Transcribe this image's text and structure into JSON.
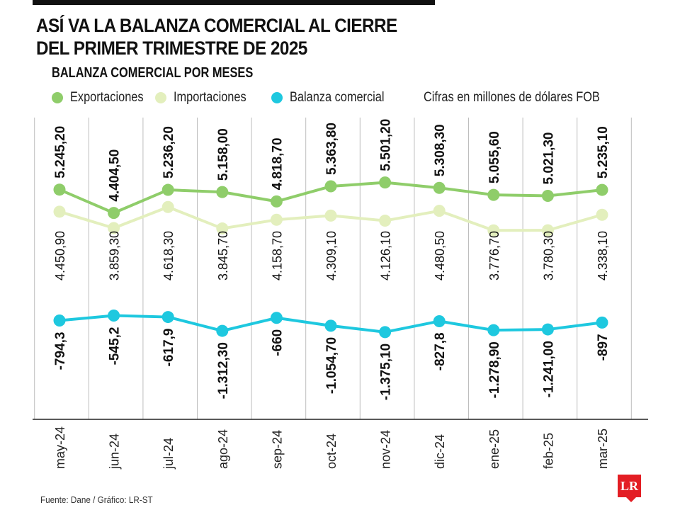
{
  "header": {
    "title_line1": "ASÍ VA LA BALANZA COMERCIAL AL CIERRE",
    "title_line2": "DEL PRIMER TRIMESTRE DE 2025",
    "subtitle": "BALANZA COMERCIAL POR MESES"
  },
  "legend": {
    "exports_label": "Exportaciones",
    "imports_label": "Importaciones",
    "balance_label": "Balanza comercial",
    "units_note": "Cifras en millones de dólares FOB"
  },
  "colors": {
    "exports": "#8fcd6a",
    "imports": "#e3efbd",
    "balance": "#1ec8df",
    "grid": "#bdbdbd",
    "logo": "#e31e24"
  },
  "footer": {
    "source": "Fuente: Dane / Gráfico: LR-ST",
    "logo_text": "LR"
  },
  "chart_data": {
    "type": "line",
    "title": "BALANZA COMERCIAL POR MESES",
    "units": "Cifras en millones de dólares FOB",
    "categories": [
      "may-24",
      "jun-24",
      "jul-24",
      "ago-24",
      "sep-24",
      "oct-24",
      "nov-24",
      "dic-24",
      "ene-25",
      "feb-25",
      "mar-25"
    ],
    "series": [
      {
        "name": "Exportaciones",
        "values": [
          5245.2,
          4404.5,
          5236.2,
          5158.0,
          4818.7,
          5363.8,
          5501.2,
          5308.3,
          5055.6,
          5021.3,
          5235.1
        ],
        "labels": [
          "5.245,20",
          "4.404,50",
          "5.236,20",
          "5.158,00",
          "4.818,70",
          "5.363,80",
          "5.501,20",
          "5.308,30",
          "5.055,60",
          "5.021,30",
          "5.235,10"
        ]
      },
      {
        "name": "Importaciones",
        "values": [
          4450.9,
          3859.3,
          4618.3,
          3845.7,
          4158.7,
          4309.1,
          4126.1,
          4480.5,
          3776.7,
          3780.3,
          4338.1
        ],
        "labels": [
          "4.450,90",
          "3.859,30",
          "4.618,30",
          "3.845,70",
          "4.158,70",
          "4.309,10",
          "4.126,10",
          "4.480,50",
          "3.776,70",
          "3.780,30",
          "4.338,10"
        ]
      },
      {
        "name": "Balanza comercial",
        "values": [
          -794.3,
          -545.2,
          -617.9,
          -1312.3,
          -660.0,
          -1054.7,
          -1375.1,
          -827.8,
          -1278.9,
          -1241.0,
          -897.0
        ],
        "labels": [
          "-794,3",
          "-545,2",
          "-617,9",
          "-1.312,30",
          "-660",
          "-1.054,70",
          "-1.375,10",
          "-827,8",
          "-1.278,90",
          "-1.241,00",
          "-897"
        ]
      }
    ],
    "grid": true,
    "legend_position": "top"
  }
}
